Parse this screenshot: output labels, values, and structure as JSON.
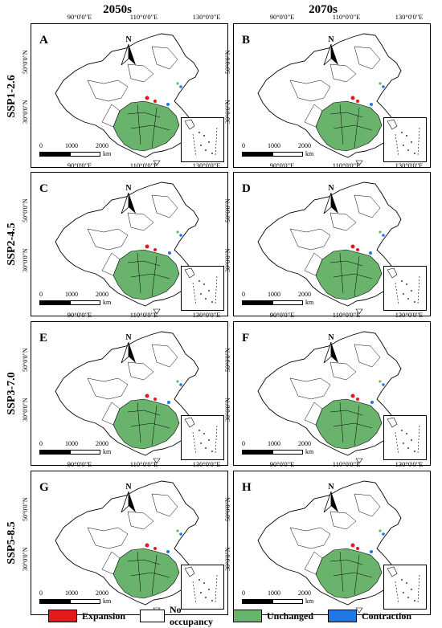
{
  "columns": [
    "2050s",
    "2070s"
  ],
  "rows": [
    "SSP1-2.6",
    "SSP2-4.5",
    "SSP3-7.0",
    "SSP5-8.5"
  ],
  "panels": [
    {
      "letter": "A"
    },
    {
      "letter": "B"
    },
    {
      "letter": "C"
    },
    {
      "letter": "D"
    },
    {
      "letter": "E"
    },
    {
      "letter": "F"
    },
    {
      "letter": "G"
    },
    {
      "letter": "H"
    }
  ],
  "lon_ticks": [
    "90°0'0\"E",
    "110°0'0\"E",
    "130°0'0\"E"
  ],
  "lat_ticks": [
    "50°0'0\"N",
    "30°0'0\"N"
  ],
  "north_label": "N",
  "scale": {
    "labels": [
      "0",
      "1000",
      "2000"
    ],
    "unit": "km"
  },
  "legend": [
    {
      "label": "Expansion",
      "color": "#e31a1c"
    },
    {
      "label": "No occupancy",
      "color": "#ffffff"
    },
    {
      "label": "Unchanged",
      "color": "#6ab36d"
    },
    {
      "label": "Contraction",
      "color": "#1f78e4"
    }
  ]
}
